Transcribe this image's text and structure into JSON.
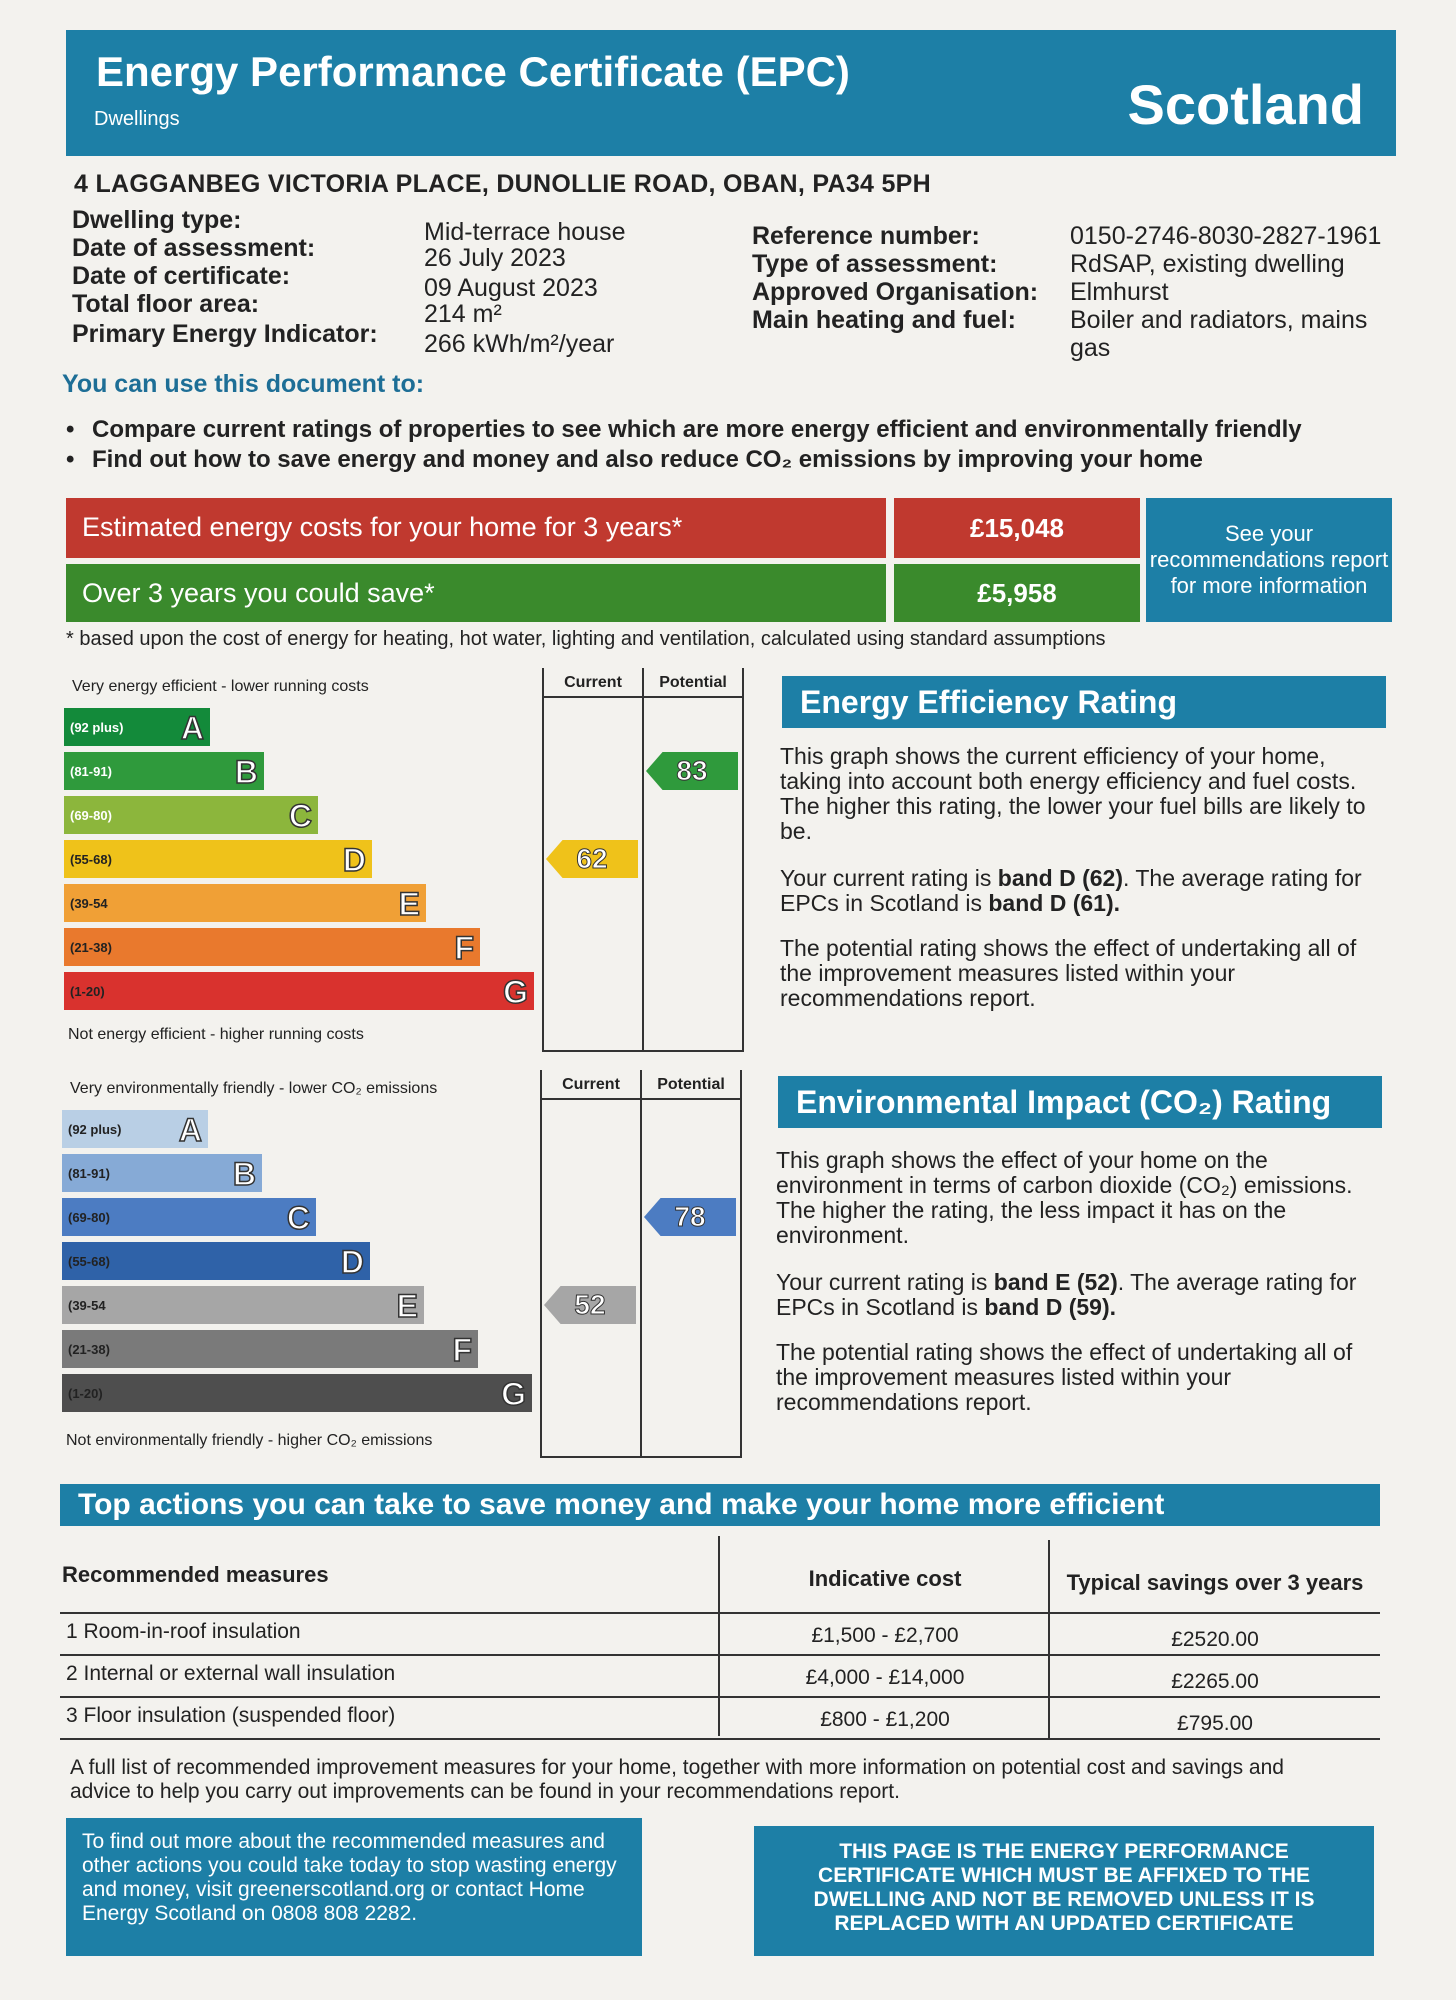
{
  "header": {
    "title": "Energy Performance Certificate (EPC)",
    "subtitle": "Dwellings",
    "region": "Scotland"
  },
  "address": "4 LAGGANBEG VICTORIA PLACE,  DUNOLLIE ROAD, OBAN, PA34 5PH",
  "details_left": [
    {
      "label": "Dwelling type:",
      "value": "Mid-terrace house"
    },
    {
      "label": "Date of assessment:",
      "value": "26 July 2023"
    },
    {
      "label": "Date of certificate:",
      "value": "09 August 2023"
    },
    {
      "label": "Total floor area:",
      "value": "214 m²"
    },
    {
      "label": "Primary Energy Indicator:",
      "value": "266 kWh/m²/year"
    }
  ],
  "details_right": [
    {
      "label": "Reference number:",
      "value": "0150-2746-8030-2827-1961"
    },
    {
      "label": "Type of assessment:",
      "value": "RdSAP, existing dwelling"
    },
    {
      "label": "Approved Organisation:",
      "value": "Elmhurst"
    },
    {
      "label": "Main heating and fuel:",
      "value": "Boiler and radiators, mains",
      "value2": "gas"
    }
  ],
  "use_heading": "You can use this document to:",
  "bullets": [
    "Compare current ratings of properties to see which are more energy efficient and environmentally friendly",
    "Find out how to save energy and money and also reduce CO₂ emissions by improving your home"
  ],
  "costs": {
    "estimate_label": "Estimated energy costs for your home for 3 years*",
    "estimate_value": "£15,048",
    "save_label": "Over 3 years you could save*",
    "save_value": "£5,958",
    "see_report": "See your recommendations report for more information",
    "footnote": "* based upon the cost of energy for heating, hot water, lighting and ventilation, calculated using standard assumptions"
  },
  "energy_chart": {
    "top_note": "Very energy efficient - lower running costs",
    "bottom_note": "Not energy efficient - higher running costs",
    "col_current": "Current",
    "col_potential": "Potential",
    "current": "62",
    "potential": "83",
    "current_band": "D",
    "potential_band": "B",
    "bands": [
      {
        "range": "(92 plus)",
        "letter": "A",
        "color": "#138a3a"
      },
      {
        "range": "(81-91)",
        "letter": "B",
        "color": "#2f9a3c"
      },
      {
        "range": "(69-80)",
        "letter": "C",
        "color": "#8cb63c"
      },
      {
        "range": "(55-68)",
        "letter": "D",
        "color": "#efc21a"
      },
      {
        "range": "(39-54",
        "letter": "E",
        "color": "#f0a036"
      },
      {
        "range": "(21-38)",
        "letter": "F",
        "color": "#e9792d"
      },
      {
        "range": "(1-20)",
        "letter": "G",
        "color": "#d9322e"
      }
    ]
  },
  "energy_text": {
    "title": "Energy Efficiency Rating",
    "p1": "This graph shows the current efficiency of your home, taking into account both energy efficiency and fuel costs. The higher this rating, the lower your fuel bills are likely to be.",
    "p2a": "Your current rating is ",
    "p2b": "band D (62)",
    "p2c": ". The average rating for EPCs in Scotland is ",
    "p2d": "band D (61).",
    "p3": "The potential rating shows the effect of undertaking all of the improvement measures listed within your recommendations report."
  },
  "env_chart": {
    "top_note": "Very environmentally friendly - lower CO₂ emissions",
    "bottom_note": "Not environmentally friendly - higher CO₂ emissions",
    "col_current": "Current",
    "col_potential": "Potential",
    "current": "52",
    "potential": "78",
    "current_band": "E",
    "potential_band": "C",
    "bands": [
      {
        "range": "(92 plus)",
        "letter": "A",
        "color": "#b9cfe5"
      },
      {
        "range": "(81-91)",
        "letter": "B",
        "color": "#86aad6"
      },
      {
        "range": "(69-80)",
        "letter": "C",
        "color": "#4c7cc2"
      },
      {
        "range": "(55-68)",
        "letter": "D",
        "color": "#2f62a8"
      },
      {
        "range": "(39-54",
        "letter": "E",
        "color": "#a6a6a6"
      },
      {
        "range": "(21-38)",
        "letter": "F",
        "color": "#7a7a7a"
      },
      {
        "range": "(1-20)",
        "letter": "G",
        "color": "#4e4e4e"
      }
    ]
  },
  "env_text": {
    "title": "Environmental Impact (CO₂) Rating",
    "p1": "This graph shows the effect of your home on the environment in terms of carbon dioxide (CO₂) emissions. The higher the rating, the less impact it has on the environment.",
    "p2a": "Your current rating is ",
    "p2b": "band E (52)",
    "p2c": ". The average rating for EPCs in Scotland is ",
    "p2d": "band D (59).",
    "p3": "The potential rating shows the effect of undertaking all of the improvement measures listed within your recommendations report."
  },
  "actions": {
    "title": "Top actions you can take to save money and make your home more efficient",
    "headers": [
      "Recommended measures",
      "Indicative cost",
      "Typical savings over 3 years"
    ],
    "rows": [
      [
        "1 Room-in-roof insulation",
        "£1,500 - £2,700",
        "£2520.00"
      ],
      [
        "2 Internal or external wall insulation",
        "£4,000 - £14,000",
        "£2265.00"
      ],
      [
        "3 Floor insulation (suspended floor)",
        "£800 - £1,200",
        "£795.00"
      ]
    ],
    "tail": "A full list of recommended improvement measures for your home, together with more information on potential cost and savings and advice to help you carry out improvements can be found in your recommendations report."
  },
  "footer": {
    "left": "To find out more about the recommended measures and other actions you could take today to stop wasting energy and money, visit greenerscotland.org or contact Home Energy Scotland on 0808 808 2282.",
    "right": "THIS PAGE IS THE ENERGY PERFORMANCE CERTIFICATE WHICH MUST BE AFFIXED TO THE DWELLING AND NOT BE REMOVED UNLESS IT IS REPLACED WITH AN UPDATED CERTIFICATE"
  },
  "colors": {
    "brand_blue": "#1d7fa6",
    "cost_red": "#c0392f",
    "save_green": "#3a8a2c"
  }
}
